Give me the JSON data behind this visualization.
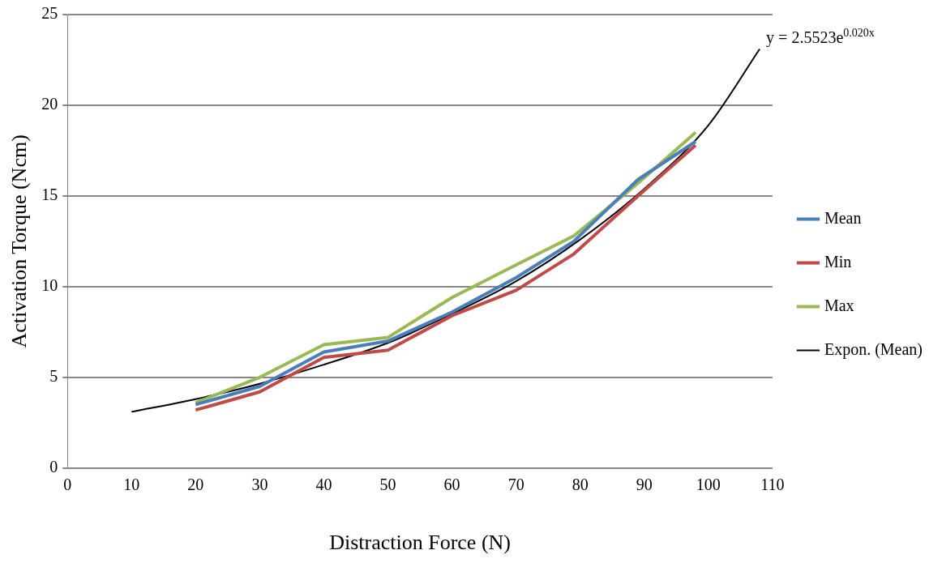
{
  "chart_data": {
    "type": "line",
    "xlabel": "Distraction Force (N)",
    "ylabel": "Activation Torque (Ncm)",
    "x": [
      20,
      30,
      40,
      50,
      60,
      70,
      79,
      89,
      98
    ],
    "series": [
      {
        "name": "Mean",
        "color": "#4a7ebb",
        "values": [
          3.5,
          4.5,
          6.4,
          7.0,
          8.6,
          10.5,
          12.5,
          15.9,
          18.0
        ]
      },
      {
        "name": "Min",
        "color": "#be4b48",
        "values": [
          3.2,
          4.2,
          6.1,
          6.5,
          8.4,
          9.8,
          11.8,
          15.0,
          17.8
        ]
      },
      {
        "name": "Max",
        "color": "#98b954",
        "values": [
          3.6,
          5.0,
          6.8,
          7.2,
          9.4,
          11.2,
          12.8,
          15.7,
          18.5
        ]
      },
      {
        "name": "Expon. (Mean)",
        "color": "#000000",
        "x": [
          10,
          20,
          30,
          40,
          50,
          60,
          70,
          80,
          90,
          100,
          108
        ],
        "values": [
          3.1,
          3.8,
          4.65,
          5.7,
          6.9,
          8.5,
          10.3,
          12.6,
          15.4,
          18.9,
          23.1
        ]
      }
    ],
    "xlim": [
      0,
      110
    ],
    "xticks": [
      0,
      10,
      20,
      30,
      40,
      50,
      60,
      70,
      80,
      90,
      100,
      110
    ],
    "ylim": [
      0,
      25
    ],
    "yticks": [
      0,
      5,
      10,
      15,
      20,
      25
    ],
    "grid": "y",
    "legend": "right",
    "marker": "none",
    "line_style": "solid",
    "annotations": [
      {
        "text": "y = 2.5523e$^{0.020x}$",
        "x": 108,
        "y": 23.1
      }
    ]
  }
}
